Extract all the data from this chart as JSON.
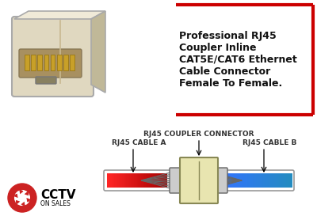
{
  "bg_color": "#ffffff",
  "title_text": "Professional RJ45\nCoupler Inline\nCAT5E/CAT6 Ethernet\nCable Connector\nFemale To Female.",
  "title_color": "#111111",
  "title_fontsize": 9,
  "border_color": "#cc0000",
  "label_coupler": "RJ45 COUPLER CONNECTOR",
  "label_a": "RJ45 CABLE A",
  "label_b": "RJ45 CABLE B",
  "label_fontsize": 6.5,
  "label_color": "#333333",
  "coupler_fill": "#e8e5b0",
  "coupler_border": "#888855",
  "connector_fill": "#cccccc",
  "logo_red": "#cc2222",
  "logo_text": "CCTV",
  "logo_sub": "ON SALES"
}
